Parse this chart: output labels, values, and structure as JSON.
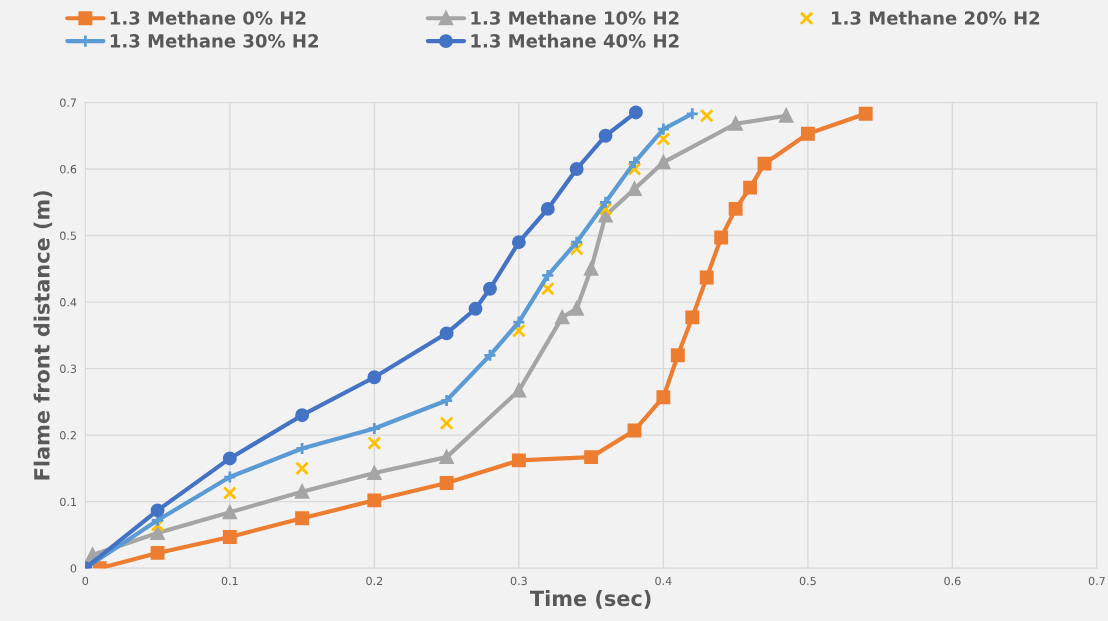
{
  "chart_data": {
    "type": "line",
    "xlabel": "Time (sec)",
    "ylabel": "Flame front distance (m)",
    "xlim": [
      0,
      0.7
    ],
    "ylim": [
      0,
      0.7
    ],
    "xticks": [
      0,
      0.1,
      0.2,
      0.3,
      0.4,
      0.5,
      0.6,
      0.7
    ],
    "yticks": [
      0,
      0.1,
      0.2,
      0.3,
      0.4,
      0.5,
      0.6,
      0.7
    ],
    "grid": true,
    "legend": "top",
    "series": [
      {
        "name": "1.3 Methane 0% H2",
        "color": "#ed7d31",
        "marker": "square",
        "line_style": "solid",
        "x": [
          0.01,
          0.05,
          0.1,
          0.15,
          0.2,
          0.25,
          0.3,
          0.35,
          0.38,
          0.4,
          0.41,
          0.42,
          0.43,
          0.44,
          0.45,
          0.46,
          0.47,
          0.5,
          0.54
        ],
        "values": [
          0,
          0.023,
          0.047,
          0.075,
          0.102,
          0.128,
          0.162,
          0.167,
          0.207,
          0.257,
          0.32,
          0.377,
          0.437,
          0.497,
          0.54,
          0.572,
          0.608,
          0.653,
          0.683
        ]
      },
      {
        "name": "1.3 Methane 10% H2",
        "color": "#a5a5a5",
        "marker": "triangle",
        "line_style": "solid",
        "x": [
          0,
          0.005,
          0.05,
          0.1,
          0.15,
          0.2,
          0.25,
          0.3,
          0.33,
          0.34,
          0.35,
          0.36,
          0.38,
          0.4,
          0.45,
          0.485
        ],
        "values": [
          0,
          0.02,
          0.053,
          0.084,
          0.115,
          0.143,
          0.167,
          0.267,
          0.377,
          0.39,
          0.45,
          0.53,
          0.57,
          0.61,
          0.668,
          0.68
        ]
      },
      {
        "name": "1.3 Methane 20% H2",
        "type": "scatter",
        "color": "#ffc000",
        "marker": "cross",
        "x": [
          0,
          0.05,
          0.1,
          0.15,
          0.2,
          0.25,
          0.3,
          0.32,
          0.34,
          0.36,
          0.38,
          0.4,
          0.43
        ],
        "values": [
          0,
          0.065,
          0.113,
          0.15,
          0.188,
          0.218,
          0.357,
          0.42,
          0.48,
          0.54,
          0.6,
          0.645,
          0.68
        ]
      },
      {
        "name": "1.3 Methane 30% H2",
        "color": "#5b9bd5",
        "marker": "plus",
        "line_style": "solid",
        "x": [
          0,
          0.05,
          0.1,
          0.15,
          0.2,
          0.25,
          0.28,
          0.3,
          0.32,
          0.34,
          0.36,
          0.38,
          0.4,
          0.42
        ],
        "values": [
          0,
          0.072,
          0.137,
          0.18,
          0.21,
          0.252,
          0.32,
          0.37,
          0.44,
          0.49,
          0.55,
          0.61,
          0.66,
          0.683
        ]
      },
      {
        "name": "1.3 Methane 40% H2",
        "color": "#4472c4",
        "marker": "circle",
        "line_style": "solid",
        "x": [
          0,
          0.05,
          0.1,
          0.15,
          0.2,
          0.25,
          0.27,
          0.28,
          0.3,
          0.32,
          0.34,
          0.36,
          0.381
        ],
        "values": [
          0,
          0.087,
          0.165,
          0.23,
          0.287,
          0.353,
          0.39,
          0.42,
          0.49,
          0.54,
          0.6,
          0.65,
          0.685
        ]
      }
    ]
  }
}
